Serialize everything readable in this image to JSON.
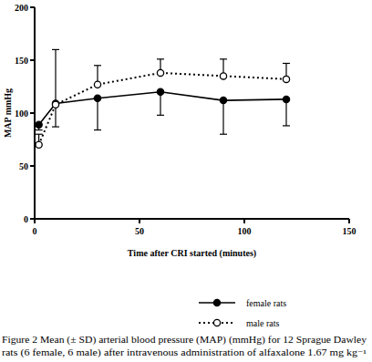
{
  "chart_data": {
    "type": "line",
    "x_label": "Time after CRI started (minutes)",
    "y_label": "MAP mmHg",
    "x": [
      2,
      10,
      30,
      60,
      90,
      120
    ],
    "xlim": [
      0,
      150
    ],
    "xticks": [
      0,
      50,
      100,
      150
    ],
    "ylim": [
      0,
      200
    ],
    "yticks": [
      0,
      50,
      100,
      150,
      200
    ],
    "legend": "bottom",
    "series": [
      {
        "name": "female rats",
        "color": "#000000",
        "marker": "circle",
        "line_style": "solid",
        "values": [
          89,
          109,
          114,
          120,
          112,
          113
        ],
        "error": [
          5,
          22,
          30,
          22,
          32,
          25
        ]
      },
      {
        "name": "male rats",
        "color": "#000000",
        "marker": "open_circle",
        "line_style": "dotted",
        "values": [
          70,
          108,
          127,
          138,
          135,
          132
        ],
        "error": [
          10,
          52,
          18,
          13,
          16,
          15
        ]
      }
    ],
    "caption": [
      "Figure 2 Mean (± SD) arterial blood pressure (MAP) (mmHg) for 12 Sprague Dawley",
      "rats (6 female, 6 male) after intravenous administration of alfaxalone 1.67 mg kg⁻¹"
    ]
  }
}
